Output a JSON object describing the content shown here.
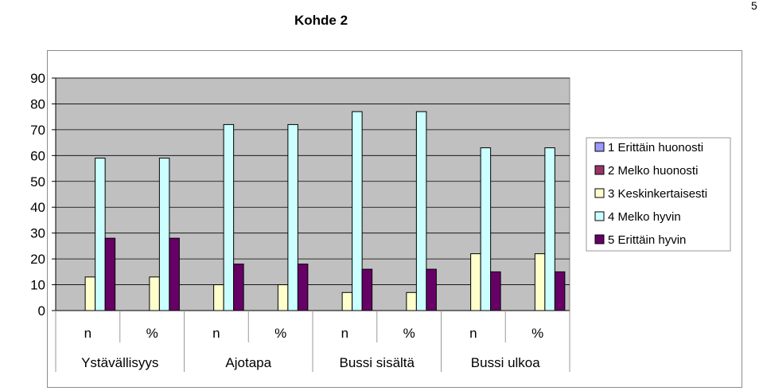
{
  "page": {
    "title": "Kohde 2",
    "page_number": "5"
  },
  "colors": {
    "plot_background": "#c0c0c0",
    "grid": "#000000",
    "series": [
      "#9999ff",
      "#993366",
      "#ffffcc",
      "#ccffff",
      "#660066"
    ]
  },
  "chart_data": {
    "type": "bar",
    "title": "Kohde 2",
    "xlabel": "",
    "ylabel": "",
    "ylim": [
      0,
      90
    ],
    "yticks": [
      0,
      10,
      20,
      30,
      40,
      50,
      60,
      70,
      80,
      90
    ],
    "grid": true,
    "legend_position": "right",
    "categories": [
      "n",
      "%",
      "n",
      "%",
      "n",
      "%",
      "n",
      "%"
    ],
    "groups": [
      "Ystävällisyys",
      "Ajotapa",
      "Bussi sisältä",
      "Bussi ulkoa"
    ],
    "series": [
      {
        "name": "1 Erittäin huonosti",
        "values": [
          0,
          0,
          0,
          0,
          0,
          0,
          0,
          0
        ]
      },
      {
        "name": "2 Melko huonosti",
        "values": [
          0,
          0,
          0,
          0,
          0,
          0,
          0,
          0
        ]
      },
      {
        "name": "3 Keskinkertaisesti",
        "values": [
          13,
          13,
          10,
          10,
          7,
          7,
          22,
          22
        ]
      },
      {
        "name": "4 Melko hyvin",
        "values": [
          59,
          59,
          72,
          72,
          77,
          77,
          63,
          63
        ]
      },
      {
        "name": "5 Erittäin hyvin",
        "values": [
          28,
          28,
          18,
          18,
          16,
          16,
          15,
          15
        ]
      }
    ]
  }
}
